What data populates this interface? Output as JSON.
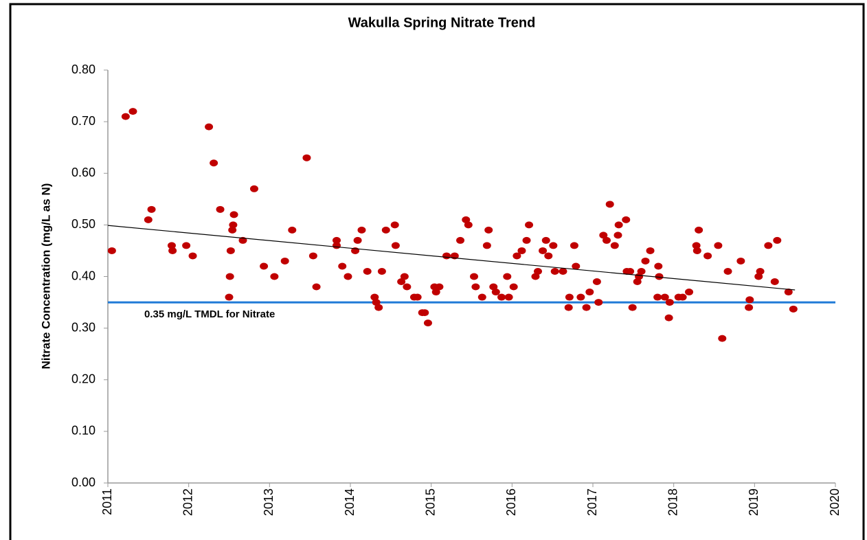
{
  "chart_data": {
    "type": "scatter",
    "title": "Wakulla Spring Nitrate Trend",
    "y_label": "Nitrate  Concentration (mg/L as N)",
    "color": "#c00000",
    "xlim": [
      2011,
      2020
    ],
    "xticks": [
      2011,
      2012,
      2013,
      2014,
      2015,
      2016,
      2017,
      2018,
      2019,
      2020
    ],
    "ylim": [
      0,
      0.8
    ],
    "yticks": [
      {
        "value": 0,
        "label": "0.00"
      },
      {
        "value": 0.1,
        "label": "0.10"
      },
      {
        "value": 0.2,
        "label": "0.20"
      },
      {
        "value": 0.3,
        "label": "0.30"
      },
      {
        "value": 0.4,
        "label": "0.40"
      },
      {
        "value": 0.5,
        "label": "0.50"
      },
      {
        "value": 0.6,
        "label": "0.60"
      },
      {
        "value": 0.7,
        "label": "0.70"
      },
      {
        "value": 0.8,
        "label": "0.80"
      }
    ],
    "x": [
      2011.05,
      2011.22,
      2011.31,
      2011.5,
      2011.54,
      2011.79,
      2011.8,
      2011.97,
      2012.05,
      2012.25,
      2012.31,
      2012.39,
      2012.5,
      2012.51,
      2012.52,
      2012.54,
      2012.55,
      2012.56,
      2012.67,
      2012.81,
      2012.93,
      2013.06,
      2013.19,
      2013.28,
      2013.46,
      2013.54,
      2013.58,
      2013.83,
      2013.83,
      2013.9,
      2013.97,
      2014.06,
      2014.09,
      2014.14,
      2014.21,
      2014.3,
      2014.32,
      2014.35,
      2014.39,
      2014.44,
      2014.55,
      2014.56,
      2014.63,
      2014.67,
      2014.7,
      2014.79,
      2014.83,
      2014.89,
      2014.92,
      2014.96,
      2015.04,
      2015.06,
      2015.1,
      2015.19,
      2015.29,
      2015.36,
      2015.43,
      2015.46,
      2015.53,
      2015.55,
      2015.63,
      2015.69,
      2015.71,
      2015.77,
      2015.8,
      2015.87,
      2015.94,
      2015.96,
      2016.02,
      2016.06,
      2016.12,
      2016.18,
      2016.21,
      2016.29,
      2016.32,
      2016.38,
      2016.42,
      2016.45,
      2016.51,
      2016.53,
      2016.63,
      2016.7,
      2016.71,
      2016.77,
      2016.79,
      2016.85,
      2016.92,
      2016.96,
      2017.05,
      2017.07,
      2017.13,
      2017.17,
      2017.21,
      2017.27,
      2017.31,
      2017.32,
      2017.41,
      2017.42,
      2017.46,
      2017.49,
      2017.55,
      2017.57,
      2017.6,
      2017.65,
      2017.71,
      2017.81,
      2017.82,
      2017.8,
      2017.89,
      2017.95,
      2017.94,
      2018.06,
      2018.11,
      2018.19,
      2018.28,
      2018.29,
      2018.31,
      2018.42,
      2018.55,
      2018.6,
      2018.67,
      2018.83,
      2018.93,
      2018.94,
      2019.05,
      2019.07,
      2019.17,
      2019.25,
      2019.28,
      2019.42,
      2019.48
    ],
    "values": [
      0.45,
      0.71,
      0.72,
      0.51,
      0.53,
      0.46,
      0.45,
      0.46,
      0.44,
      0.69,
      0.62,
      0.53,
      0.36,
      0.4,
      0.45,
      0.49,
      0.5,
      0.52,
      0.47,
      0.57,
      0.42,
      0.4,
      0.43,
      0.49,
      0.63,
      0.44,
      0.38,
      0.47,
      0.46,
      0.42,
      0.4,
      0.45,
      0.47,
      0.49,
      0.41,
      0.36,
      0.35,
      0.34,
      0.41,
      0.49,
      0.5,
      0.46,
      0.39,
      0.4,
      0.38,
      0.36,
      0.36,
      0.33,
      0.33,
      0.31,
      0.38,
      0.37,
      0.38,
      0.44,
      0.44,
      0.47,
      0.51,
      0.5,
      0.4,
      0.38,
      0.36,
      0.46,
      0.49,
      0.38,
      0.37,
      0.36,
      0.4,
      0.36,
      0.38,
      0.44,
      0.45,
      0.47,
      0.5,
      0.4,
      0.41,
      0.45,
      0.47,
      0.44,
      0.46,
      0.41,
      0.41,
      0.34,
      0.36,
      0.46,
      0.42,
      0.36,
      0.34,
      0.37,
      0.39,
      0.35,
      0.48,
      0.47,
      0.54,
      0.46,
      0.48,
      0.5,
      0.51,
      0.41,
      0.41,
      0.34,
      0.39,
      0.4,
      0.41,
      0.43,
      0.45,
      0.42,
      0.4,
      0.36,
      0.36,
      0.35,
      0.32,
      0.36,
      0.36,
      0.37,
      0.46,
      0.45,
      0.49,
      0.44,
      0.46,
      0.28,
      0.41,
      0.43,
      0.34,
      0.355,
      0.4,
      0.41,
      0.46,
      0.39,
      0.47,
      0.37,
      0.337
    ],
    "trend": {
      "x": [
        2011,
        2019.5
      ],
      "values": [
        0.499,
        0.374
      ],
      "color": "#000000"
    },
    "threshold": {
      "value": 0.35,
      "label": "0.35 mg/L TMDL for Nitrate",
      "color": "#1f7ad6"
    }
  }
}
